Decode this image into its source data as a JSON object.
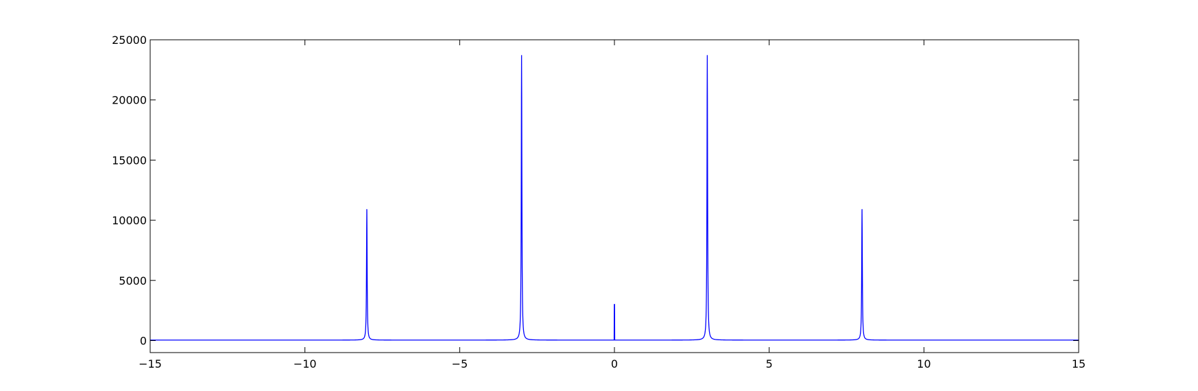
{
  "chart_data": {
    "type": "line",
    "title": "",
    "xlabel": "",
    "ylabel": "",
    "xlim": [
      -15,
      15
    ],
    "ylim": [
      -1000,
      25000
    ],
    "xticks": [
      -15,
      -10,
      -5,
      0,
      5,
      10,
      15
    ],
    "yticks": [
      0,
      5000,
      10000,
      15000,
      20000,
      25000
    ],
    "xtick_labels": [
      "−15",
      "−10",
      "−5",
      "0",
      "5",
      "10",
      "15"
    ],
    "ytick_labels": [
      "0",
      "5000",
      "10000",
      "15000",
      "20000",
      "25000"
    ],
    "grid": false,
    "legend": "none",
    "series": [
      {
        "color": "#0000ff",
        "baseline": 40,
        "peaks": [
          {
            "x": -8,
            "y": 10900
          },
          {
            "x": -3,
            "y": 23700
          },
          {
            "x": 0,
            "y": 3000
          },
          {
            "x": 3,
            "y": 23700
          },
          {
            "x": 8,
            "y": 10900
          }
        ]
      }
    ]
  }
}
